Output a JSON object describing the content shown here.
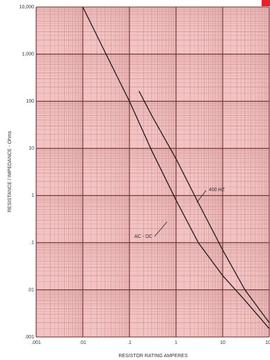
{
  "chart_data": {
    "type": "line",
    "xlabel": "RESISTOR RATING AMPERES",
    "ylabel": "RESISTANCE / IMPEDANCE - Ohms",
    "xlog": true,
    "ylog": true,
    "grid": true,
    "xlim": [
      0.001,
      100
    ],
    "ylim": [
      0.001,
      10000
    ],
    "xticks": [
      {
        "value": 0.001,
        "label": ".001"
      },
      {
        "value": 0.01,
        "label": ".01"
      },
      {
        "value": 0.1,
        "label": ".1"
      },
      1,
      10,
      100
    ],
    "yticks": [
      {
        "value": 0.001,
        "label": ".001"
      },
      {
        "value": 0.01,
        "label": ".01"
      },
      {
        "value": 0.1,
        "label": ".1"
      },
      1,
      10,
      100,
      {
        "value": 1000,
        "label": "1,000"
      },
      {
        "value": 10000,
        "label": "10,000"
      }
    ],
    "series": [
      {
        "name": "AC - DC",
        "color": "#1a1a1a",
        "x": [
          0.01,
          0.03,
          0.1,
          0.3,
          1,
          3,
          10,
          30,
          100
        ],
        "values": [
          10000,
          1100,
          100,
          9,
          0.8,
          0.1,
          0.02,
          0.006,
          0.0015
        ]
      },
      {
        "name": "400 HZ",
        "color": "#1a1a1a",
        "x": [
          0.16,
          0.3,
          1,
          3,
          10,
          30,
          100
        ],
        "values": [
          165,
          50,
          6,
          0.7,
          0.07,
          0.01,
          0.002
        ]
      }
    ]
  }
}
